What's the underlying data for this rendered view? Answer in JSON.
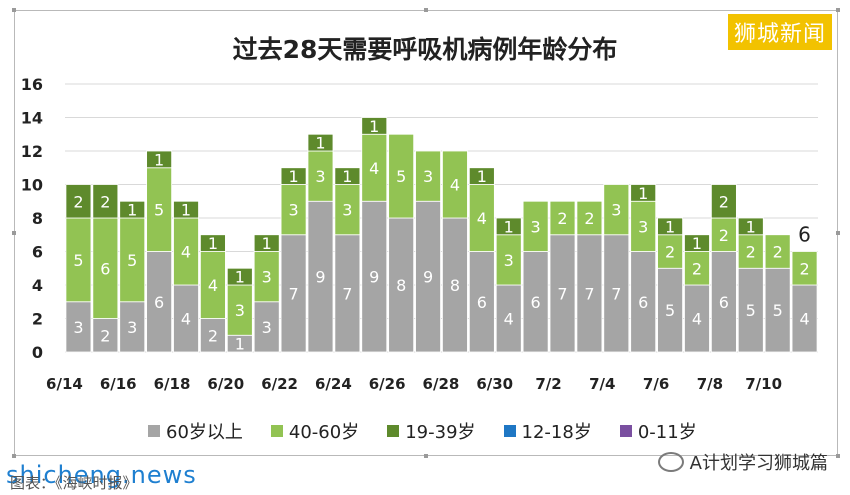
{
  "brand": "狮城新闻",
  "watermark": "shicheng.news",
  "source": "图表：《海峡时报》",
  "wechat_account": "A计划学习狮城篇",
  "legend_colors": {
    "60岁以上": "#a5a5a5",
    "40-60岁": "#92c353",
    "19-39岁": "#5e8a2c",
    "12-18岁": "#1f77c4",
    "0-11岁": "#7a4fa0"
  },
  "chart_data": {
    "type": "bar",
    "stacked": true,
    "title": "过去28天需要呼吸机病例年龄分布",
    "ylim": [
      0,
      16
    ],
    "yticks": [
      0,
      2,
      4,
      6,
      8,
      10,
      12,
      14,
      16
    ],
    "grid": true,
    "categories": [
      "6/14",
      "6/15",
      "6/16",
      "6/17",
      "6/18",
      "6/19",
      "6/20",
      "6/21",
      "6/22",
      "6/23",
      "6/24",
      "6/25",
      "6/26",
      "6/27",
      "6/28",
      "6/29",
      "6/30",
      "7/1",
      "7/2",
      "7/3",
      "7/4",
      "7/5",
      "7/6",
      "7/7",
      "7/8",
      "7/9",
      "7/10",
      "7/11"
    ],
    "tick_labels": [
      "6/14",
      "6/16",
      "6/18",
      "6/20",
      "6/22",
      "6/24",
      "6/26",
      "6/28",
      "6/30",
      "7/2",
      "7/4",
      "7/6",
      "7/8",
      "7/10"
    ],
    "series": [
      {
        "name": "60岁以上",
        "color": "#a5a5a5",
        "values": [
          3,
          2,
          3,
          6,
          4,
          2,
          1,
          3,
          7,
          9,
          7,
          9,
          8,
          9,
          8,
          6,
          4,
          6,
          7,
          7,
          7,
          6,
          5,
          4,
          6,
          5,
          5,
          4
        ]
      },
      {
        "name": "40-60岁",
        "color": "#92c353",
        "values": [
          5,
          6,
          5,
          5,
          4,
          4,
          3,
          3,
          3,
          3,
          3,
          4,
          5,
          3,
          4,
          4,
          3,
          3,
          2,
          2,
          3,
          3,
          2,
          2,
          2,
          2,
          2,
          2
        ]
      },
      {
        "name": "19-39岁",
        "color": "#5e8a2c",
        "values": [
          2,
          2,
          1,
          1,
          1,
          1,
          1,
          1,
          1,
          1,
          1,
          1,
          0,
          0,
          0,
          1,
          1,
          0,
          0,
          0,
          0,
          1,
          1,
          1,
          2,
          1,
          0,
          0
        ]
      },
      {
        "name": "12-18岁",
        "color": "#1f77c4",
        "values": [
          0,
          0,
          0,
          0,
          0,
          0,
          0,
          0,
          0,
          0,
          0,
          0,
          0,
          0,
          0,
          0,
          0,
          0,
          0,
          0,
          0,
          0,
          0,
          0,
          0,
          0,
          0,
          0
        ]
      },
      {
        "name": "0-11岁",
        "color": "#7a4fa0",
        "values": [
          0,
          0,
          0,
          0,
          0,
          0,
          0,
          0,
          0,
          0,
          0,
          0,
          0,
          0,
          0,
          0,
          0,
          0,
          0,
          0,
          0,
          0,
          0,
          0,
          0,
          0,
          0,
          0
        ]
      }
    ],
    "annotations": [
      {
        "category": "7/11",
        "text": "6"
      }
    ],
    "legend_position": "bottom"
  }
}
